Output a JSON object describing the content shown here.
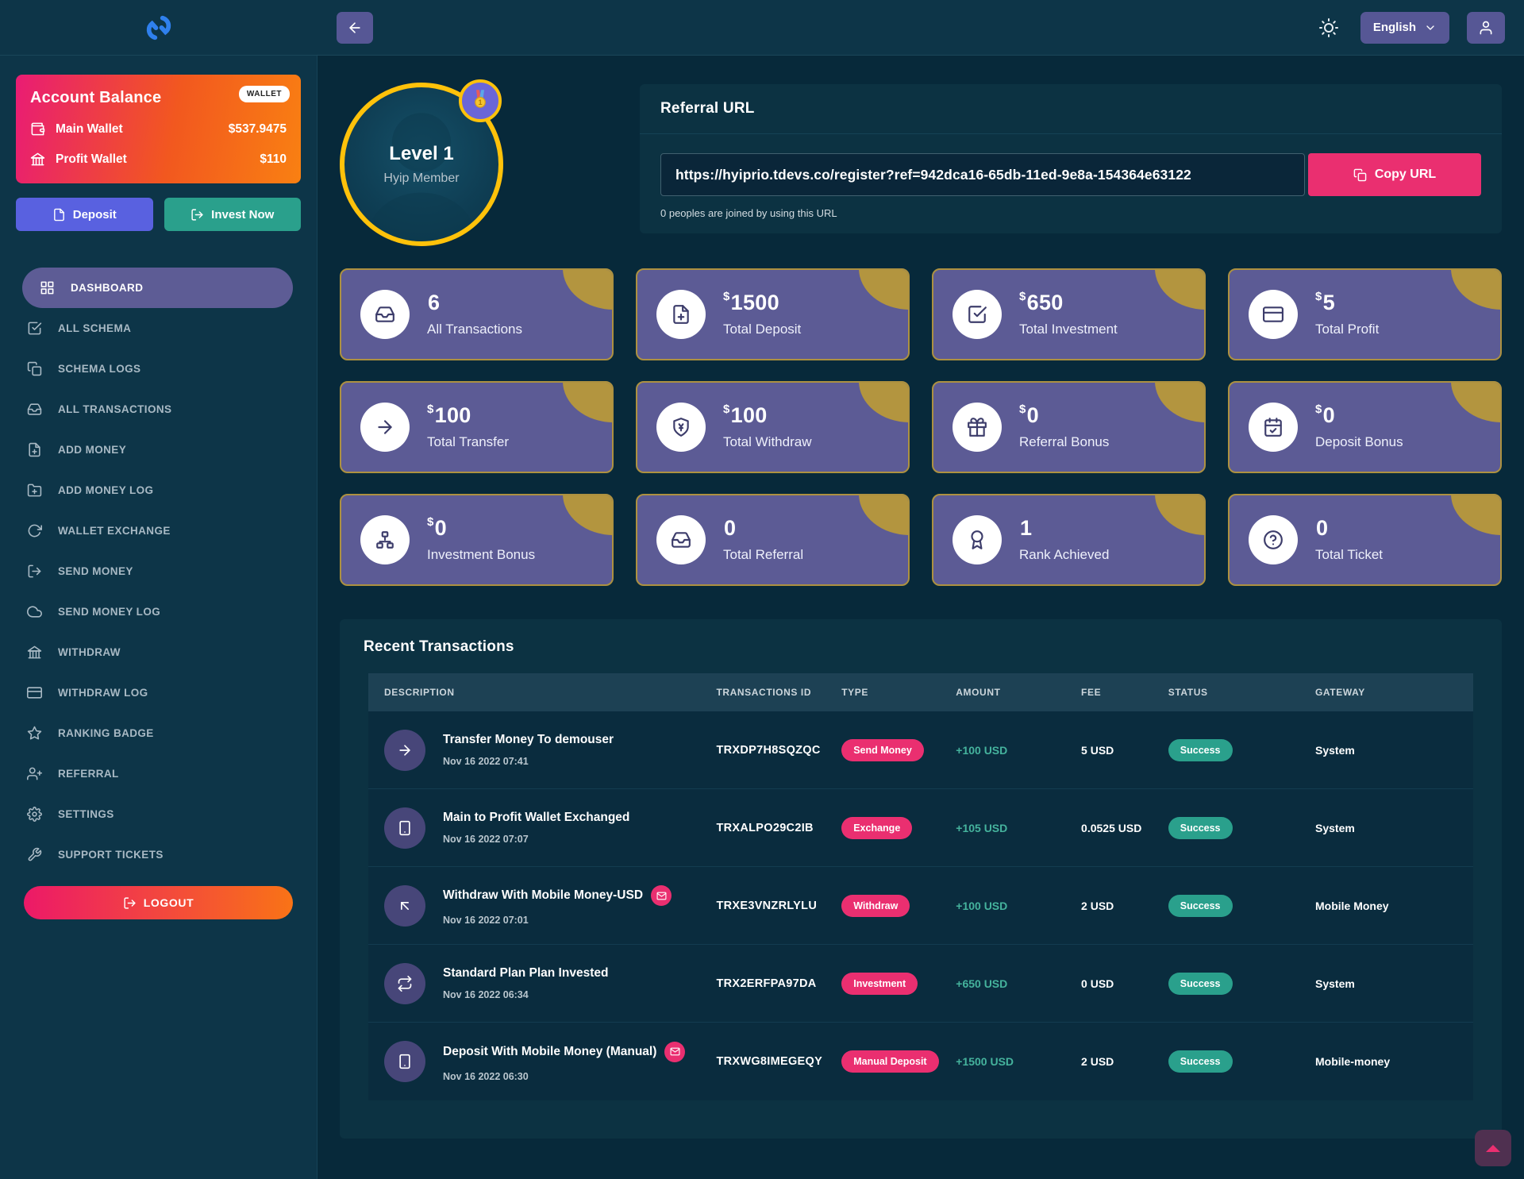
{
  "topbar": {
    "language": "English"
  },
  "sidebar": {
    "balance": {
      "title": "Account Balance",
      "badge": "WALLET",
      "rows": [
        {
          "icon": "wallet-icon",
          "label": "Main Wallet",
          "value": "$537.9475"
        },
        {
          "icon": "bank-icon",
          "label": "Profit Wallet",
          "value": "$110"
        }
      ],
      "actions": [
        {
          "icon": "file-icon",
          "label": "Deposit"
        },
        {
          "icon": "send-icon",
          "label": "Invest Now"
        }
      ]
    },
    "menu": [
      {
        "icon": "grid",
        "label": "Dashboard",
        "active": true
      },
      {
        "icon": "check-square",
        "label": "All Schema",
        "active": false
      },
      {
        "icon": "copy",
        "label": "Schema Logs",
        "active": false
      },
      {
        "icon": "inbox",
        "label": "All Transactions",
        "active": false
      },
      {
        "icon": "file-plus",
        "label": "Add Money",
        "active": false
      },
      {
        "icon": "folder-plus",
        "label": "Add Money Log",
        "active": false
      },
      {
        "icon": "refresh",
        "label": "Wallet Exchange",
        "active": false
      },
      {
        "icon": "send",
        "label": "Send Money",
        "active": false
      },
      {
        "icon": "cloud",
        "label": "Send Money Log",
        "active": false
      },
      {
        "icon": "bank",
        "label": "Withdraw",
        "active": false
      },
      {
        "icon": "credit-card",
        "label": "Withdraw Log",
        "active": false
      },
      {
        "icon": "star",
        "label": "Ranking Badge",
        "active": false
      },
      {
        "icon": "user-plus",
        "label": "Referral",
        "active": false
      },
      {
        "icon": "gear",
        "label": "Settings",
        "active": false
      },
      {
        "icon": "wrench",
        "label": "Support Tickets",
        "active": false
      }
    ],
    "logout_label": "LOGOUT"
  },
  "profile": {
    "level": "Level 1",
    "role": "Hyip Member",
    "rank_number": "1"
  },
  "referral": {
    "title": "Referral URL",
    "url": "https://hyiprio.tdevs.co/register?ref=942dca16-65db-11ed-9e8a-154364e63122",
    "copy_label": "Copy URL",
    "note": "0 peoples are joined by using this URL"
  },
  "stats": [
    {
      "icon": "inbox",
      "currency": "",
      "value": "6",
      "label": "All Transactions"
    },
    {
      "icon": "file-plus",
      "currency": "$",
      "value": "1500",
      "label": "Total Deposit"
    },
    {
      "icon": "check-square",
      "currency": "$",
      "value": "650",
      "label": "Total Investment"
    },
    {
      "icon": "credit-card",
      "currency": "$",
      "value": "5",
      "label": "Total Profit"
    },
    {
      "icon": "arrow-right",
      "currency": "$",
      "value": "100",
      "label": "Total Transfer"
    },
    {
      "icon": "shield-yen",
      "currency": "$",
      "value": "100",
      "label": "Total Withdraw"
    },
    {
      "icon": "gift",
      "currency": "$",
      "value": "0",
      "label": "Referral Bonus"
    },
    {
      "icon": "calendar-check",
      "currency": "$",
      "value": "0",
      "label": "Deposit Bonus"
    },
    {
      "icon": "sitemap",
      "currency": "$",
      "value": "0",
      "label": "Investment Bonus"
    },
    {
      "icon": "inbox",
      "currency": "",
      "value": "0",
      "label": "Total Referral"
    },
    {
      "icon": "award",
      "currency": "",
      "value": "1",
      "label": "Rank Achieved"
    },
    {
      "icon": "help",
      "currency": "",
      "value": "0",
      "label": "Total Ticket"
    }
  ],
  "transactions": {
    "title": "Recent Transactions",
    "columns": [
      "Description",
      "Transactions Id",
      "Type",
      "Amount",
      "Fee",
      "Status",
      "Gateway"
    ],
    "rows": [
      {
        "icon": "arrow-right",
        "title": "Transfer Money To demouser",
        "mail_badge": false,
        "date": "Nov 16 2022 07:41",
        "id": "TRXDP7H8SQZQC",
        "type": "Send Money",
        "amount": "+100 USD",
        "fee": "5 USD",
        "status": "Success",
        "gateway": "System"
      },
      {
        "icon": "smartphone",
        "title": "Main to Profit Wallet Exchanged",
        "mail_badge": false,
        "date": "Nov 16 2022 07:07",
        "id": "TRXALPO29C2IB",
        "type": "Exchange",
        "amount": "+105 USD",
        "fee": "0.0525 USD",
        "status": "Success",
        "gateway": "System"
      },
      {
        "icon": "arrow-up-left",
        "title": "Withdraw With Mobile Money-USD",
        "mail_badge": true,
        "date": "Nov 16 2022 07:01",
        "id": "TRXE3VNZRLYLU",
        "type": "Withdraw",
        "amount": "+100 USD",
        "fee": "2 USD",
        "status": "Success",
        "gateway": "Mobile Money"
      },
      {
        "icon": "swap",
        "title": "Standard Plan Plan Invested",
        "mail_badge": false,
        "date": "Nov 16 2022 06:34",
        "id": "TRX2ERFPA97DA",
        "type": "Investment",
        "amount": "+650 USD",
        "fee": "0 USD",
        "status": "Success",
        "gateway": "System"
      },
      {
        "icon": "smartphone",
        "title": "Deposit With Mobile Money (Manual)",
        "mail_badge": true,
        "date": "Nov 16 2022 06:30",
        "id": "TRXWG8IMEGEQY",
        "type": "Manual Deposit",
        "amount": "+1500 USD",
        "fee": "2 USD",
        "status": "Success",
        "gateway": "Mobile-money"
      }
    ]
  },
  "colors": {
    "accent_pink": "#ea2f70",
    "accent_teal": "#2aa08c",
    "card_purple": "#5c5b95",
    "gold": "#b3953f",
    "avatar_ring": "#ffc20a",
    "gradient_start": "#e91c74",
    "gradient_end": "#f98012"
  }
}
